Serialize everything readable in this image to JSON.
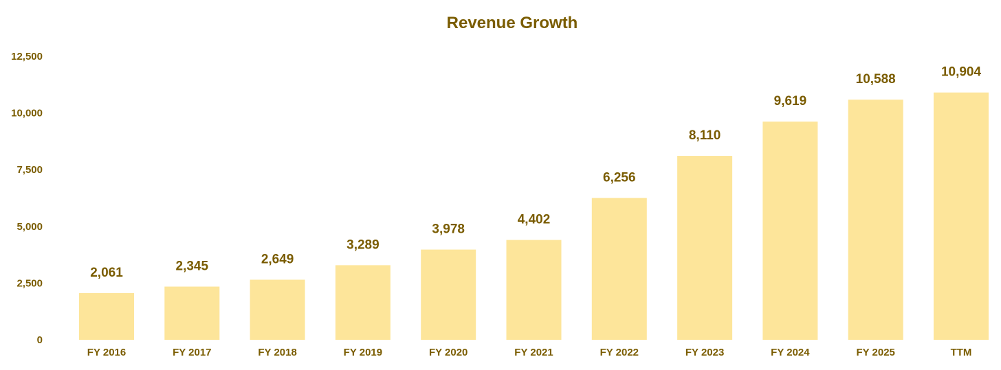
{
  "colors": {
    "bar": "#FDE59A",
    "text": "#7A5C00"
  },
  "chart_data": {
    "type": "bar",
    "title": "Revenue Growth",
    "xlabel": "",
    "ylabel": "",
    "categories": [
      "FY 2016",
      "FY 2017",
      "FY 2018",
      "FY 2019",
      "FY 2020",
      "FY 2021",
      "FY 2022",
      "FY 2023",
      "FY 2024",
      "FY 2025",
      "TTM"
    ],
    "values": [
      2061,
      2345,
      2649,
      3289,
      3978,
      4402,
      6256,
      8110,
      9619,
      10588,
      10904
    ],
    "data_labels": [
      "2,061",
      "2,345",
      "2,649",
      "3,289",
      "3,978",
      "4,402",
      "6,256",
      "8,110",
      "9,619",
      "10,588",
      "10,904"
    ],
    "ylim": [
      0,
      12500
    ],
    "yticks": [
      0,
      2500,
      5000,
      7500,
      10000,
      12500
    ],
    "ytick_labels": [
      "0",
      "2,500",
      "5,000",
      "7,500",
      "10,000",
      "12,500"
    ],
    "grid": false,
    "legend": "none"
  }
}
